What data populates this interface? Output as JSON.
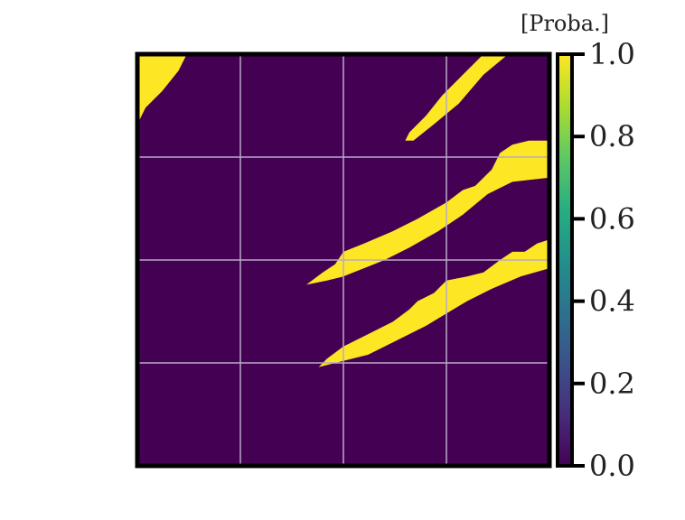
{
  "chart_data": {
    "type": "heatmap",
    "title": "",
    "xlabel": "",
    "ylabel": "",
    "grid": true,
    "colormap": "viridis",
    "colors": {
      "background": "#440154",
      "region": "#fde725",
      "grid": "#b9a9c9",
      "frame": "#000000"
    },
    "colorbar": {
      "title": "[Proba.]",
      "range": [
        0.0,
        1.0
      ],
      "tick_labels": [
        "0.0",
        "0.2",
        "0.4",
        "0.6",
        "0.8",
        "1.0"
      ],
      "tick_values": [
        0.0,
        0.2,
        0.4,
        0.6,
        0.8,
        1.0
      ]
    },
    "values_description": "Binary probability map: background value 0.0, yellow regions value 1.0",
    "background_value": 0.0,
    "region_value": 1.0,
    "grid_divisions": 4,
    "domain": [
      0,
      1
    ],
    "regions": [
      {
        "name": "top-left-corner-region",
        "polygon": [
          [
            0.0,
            1.0
          ],
          [
            0.12,
            1.0
          ],
          [
            0.1,
            0.96
          ],
          [
            0.06,
            0.91
          ],
          [
            0.02,
            0.87
          ],
          [
            0.0,
            0.83
          ]
        ]
      },
      {
        "name": "upper-diagonal-streak",
        "polygon": [
          [
            0.65,
            0.79
          ],
          [
            0.67,
            0.79
          ],
          [
            0.72,
            0.83
          ],
          [
            0.78,
            0.88
          ],
          [
            0.84,
            0.95
          ],
          [
            0.9,
            1.0
          ],
          [
            0.84,
            1.0
          ],
          [
            0.79,
            0.95
          ],
          [
            0.74,
            0.9
          ],
          [
            0.7,
            0.85
          ],
          [
            0.66,
            0.81
          ]
        ]
      },
      {
        "name": "middle-streak",
        "polygon": [
          [
            0.41,
            0.44
          ],
          [
            0.46,
            0.45
          ],
          [
            0.5,
            0.46
          ],
          [
            0.55,
            0.48
          ],
          [
            0.6,
            0.5
          ],
          [
            0.66,
            0.53
          ],
          [
            0.73,
            0.57
          ],
          [
            0.79,
            0.61
          ],
          [
            0.85,
            0.66
          ],
          [
            0.91,
            0.69
          ],
          [
            1.0,
            0.7
          ],
          [
            1.0,
            0.79
          ],
          [
            0.95,
            0.79
          ],
          [
            0.91,
            0.78
          ],
          [
            0.88,
            0.76
          ],
          [
            0.86,
            0.72
          ],
          [
            0.82,
            0.68
          ],
          [
            0.79,
            0.67
          ],
          [
            0.75,
            0.64
          ],
          [
            0.68,
            0.6
          ],
          [
            0.62,
            0.57
          ],
          [
            0.55,
            0.54
          ],
          [
            0.5,
            0.52
          ],
          [
            0.48,
            0.49
          ],
          [
            0.45,
            0.47
          ]
        ]
      },
      {
        "name": "lower-streak",
        "polygon": [
          [
            0.44,
            0.24
          ],
          [
            0.48,
            0.25
          ],
          [
            0.56,
            0.27
          ],
          [
            0.62,
            0.3
          ],
          [
            0.7,
            0.34
          ],
          [
            0.75,
            0.37
          ],
          [
            0.8,
            0.4
          ],
          [
            0.86,
            0.43
          ],
          [
            0.93,
            0.46
          ],
          [
            1.0,
            0.48
          ],
          [
            1.0,
            0.55
          ],
          [
            0.97,
            0.54
          ],
          [
            0.94,
            0.52
          ],
          [
            0.91,
            0.52
          ],
          [
            0.88,
            0.5
          ],
          [
            0.84,
            0.47
          ],
          [
            0.8,
            0.46
          ],
          [
            0.75,
            0.45
          ],
          [
            0.72,
            0.42
          ],
          [
            0.68,
            0.4
          ],
          [
            0.66,
            0.38
          ],
          [
            0.62,
            0.35
          ],
          [
            0.56,
            0.32
          ],
          [
            0.5,
            0.29
          ],
          [
            0.46,
            0.26
          ]
        ]
      }
    ]
  }
}
